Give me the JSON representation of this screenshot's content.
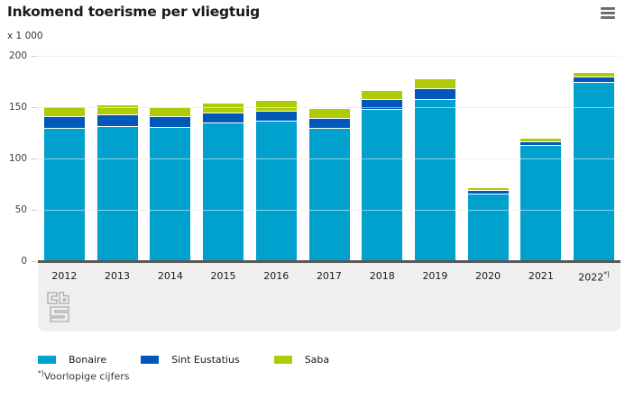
{
  "header": {
    "title": "Inkomend toerisme per vliegtuig",
    "menu_icon": "hamburger-icon"
  },
  "chart_data": {
    "type": "bar",
    "stacked": true,
    "title": "Inkomend toerisme per vliegtuig",
    "unit_label": "x 1 000",
    "categories": [
      "2012",
      "2013",
      "2014",
      "2015",
      "2016",
      "2017",
      "2018",
      "2019",
      "2020",
      "2021",
      "2022"
    ],
    "last_category_marker": "*)",
    "series": [
      {
        "name": "Bonaire",
        "color": "#00a1cd",
        "values": [
          129,
          131,
          129.5,
          134,
          136,
          129,
          147,
          157.5,
          65,
          112,
          173.5
        ]
      },
      {
        "name": "Sint Eustatius",
        "color": "#0058b8",
        "values": [
          11,
          11,
          10.5,
          9.5,
          10,
          10,
          10,
          10.5,
          3.5,
          3.5,
          5.5
        ]
      },
      {
        "name": "Saba",
        "color": "#afcb05",
        "values": [
          10,
          10,
          9.5,
          10,
          10,
          9,
          9,
          9.5,
          3,
          3.5,
          4
        ]
      }
    ],
    "ylabel": "",
    "xlabel": "",
    "ylim": [
      0,
      200
    ],
    "yticks": [
      0,
      50,
      100,
      150,
      200
    ],
    "grid": true,
    "legend_position": "bottom"
  },
  "footnote": {
    "marker": "*)",
    "text": "Voorlopige cijfers"
  },
  "branding": {
    "logo": "cbs-logo"
  },
  "colors": {
    "axis_line": "#595959",
    "grid": "#dedede",
    "band": "#efefef",
    "title_text": "#1a1a1a",
    "tick_text": "#404040",
    "menu": "#6e6e6e",
    "logo": "#a9a9a9"
  }
}
